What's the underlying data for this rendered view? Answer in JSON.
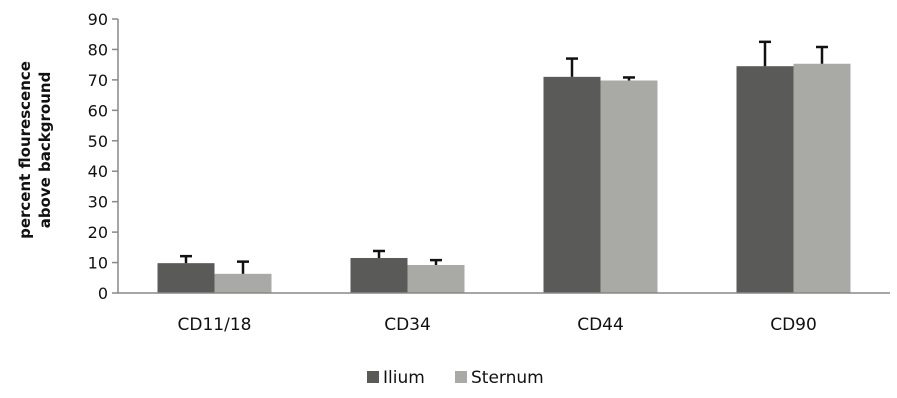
{
  "chart_data": {
    "type": "bar",
    "categories": [
      "CD11/18",
      "CD34",
      "CD44",
      "CD90"
    ],
    "series": [
      {
        "name": "Ilium",
        "values": [
          9.8,
          11.5,
          71,
          74.5
        ],
        "errors": [
          2.3,
          2.3,
          6,
          8
        ],
        "color": "#5a5a58"
      },
      {
        "name": "Sternum",
        "values": [
          6.3,
          9.2,
          69.8,
          75.3
        ],
        "errors": [
          4,
          1.6,
          1,
          5.5
        ],
        "color": "#a9aaa5"
      }
    ],
    "ylabel_lines": [
      "percent flourescence",
      "above background"
    ],
    "ylim": [
      0,
      90
    ],
    "yticks": [
      0,
      10,
      20,
      30,
      40,
      50,
      60,
      70,
      80,
      90
    ],
    "grid": false,
    "legend_position": "bottom-center"
  }
}
